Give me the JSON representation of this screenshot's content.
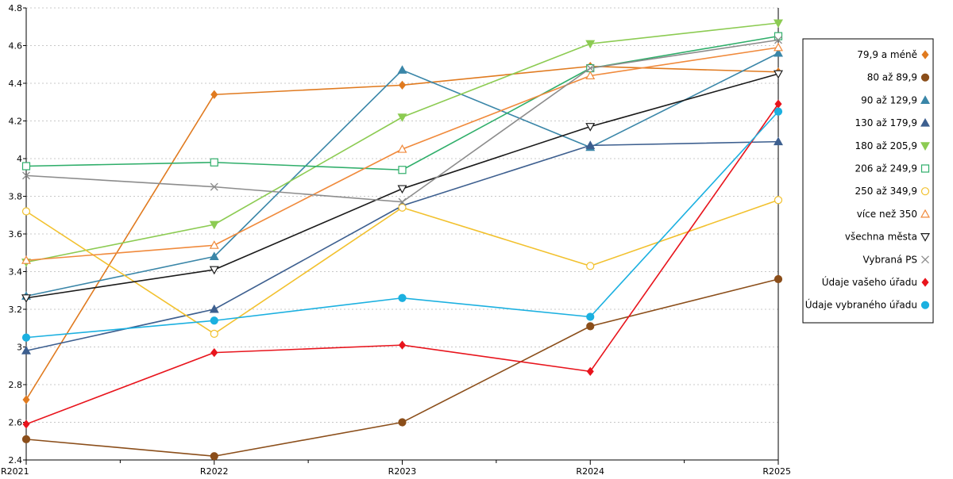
{
  "chart_data": {
    "type": "line",
    "title": "",
    "xlabel": "",
    "ylabel": "",
    "categories": [
      "R2021",
      "R2022",
      "R2023",
      "R2024",
      "R2025"
    ],
    "ylim": [
      2.4,
      4.8
    ],
    "yticks": [
      "2.4",
      "2.6",
      "2.8",
      "3",
      "3.2",
      "3.4",
      "3.6",
      "3.8",
      "4",
      "4.2",
      "4.4",
      "4.6",
      "4.8"
    ],
    "grid": "horizontal dotted",
    "legend": "right",
    "series": [
      {
        "name": "79,9 a méně",
        "color": "#E07A1F",
        "marker": "diamond",
        "filled": true,
        "values": [
          2.72,
          4.34,
          4.39,
          4.49,
          4.46
        ]
      },
      {
        "name": "80 až 89,9",
        "color": "#8B4E1A",
        "marker": "circle",
        "filled": true,
        "values": [
          2.51,
          2.42,
          2.6,
          3.11,
          3.36
        ]
      },
      {
        "name": "90 až 129,9",
        "color": "#3A86A8",
        "marker": "triangle-up",
        "filled": true,
        "values": [
          3.27,
          3.48,
          4.47,
          4.06,
          4.56
        ]
      },
      {
        "name": "130 až 179,9",
        "color": "#3D5F8F",
        "marker": "triangle-up",
        "filled": true,
        "values": [
          2.98,
          3.2,
          3.75,
          4.07,
          4.09
        ]
      },
      {
        "name": "180 až 205,9",
        "color": "#8CCB52",
        "marker": "triangle-down",
        "filled": true,
        "values": [
          3.45,
          3.65,
          4.22,
          4.61,
          4.72
        ]
      },
      {
        "name": "206 až 249,9",
        "color": "#2FAE6A",
        "marker": "square",
        "filled": false,
        "values": [
          3.96,
          3.98,
          3.94,
          4.48,
          4.65
        ]
      },
      {
        "name": "250 až 349,9",
        "color": "#F2C12E",
        "marker": "circle",
        "filled": false,
        "values": [
          3.72,
          3.07,
          3.74,
          3.43,
          3.78
        ]
      },
      {
        "name": "více než 350",
        "color": "#F08A3C",
        "marker": "triangle-up",
        "filled": false,
        "values": [
          3.46,
          3.54,
          4.05,
          4.44,
          4.59
        ]
      },
      {
        "name": "všechna města",
        "color": "#1A1A1A",
        "marker": "triangle-down",
        "filled": false,
        "values": [
          3.26,
          3.41,
          3.84,
          4.17,
          4.45
        ]
      },
      {
        "name": "Vybraná PS",
        "color": "#8C8C8C",
        "marker": "cross",
        "filled": false,
        "values": [
          3.91,
          3.85,
          3.77,
          4.48,
          4.63
        ]
      },
      {
        "name": "Údaje vašeho úřadu",
        "color": "#E8141C",
        "marker": "diamond",
        "filled": true,
        "values": [
          2.59,
          2.97,
          3.01,
          2.87,
          4.29
        ]
      },
      {
        "name": "Údaje vybraného úřadu",
        "color": "#1BB0E0",
        "marker": "circle",
        "filled": true,
        "values": [
          3.05,
          3.14,
          3.26,
          3.16,
          4.25
        ]
      }
    ]
  }
}
